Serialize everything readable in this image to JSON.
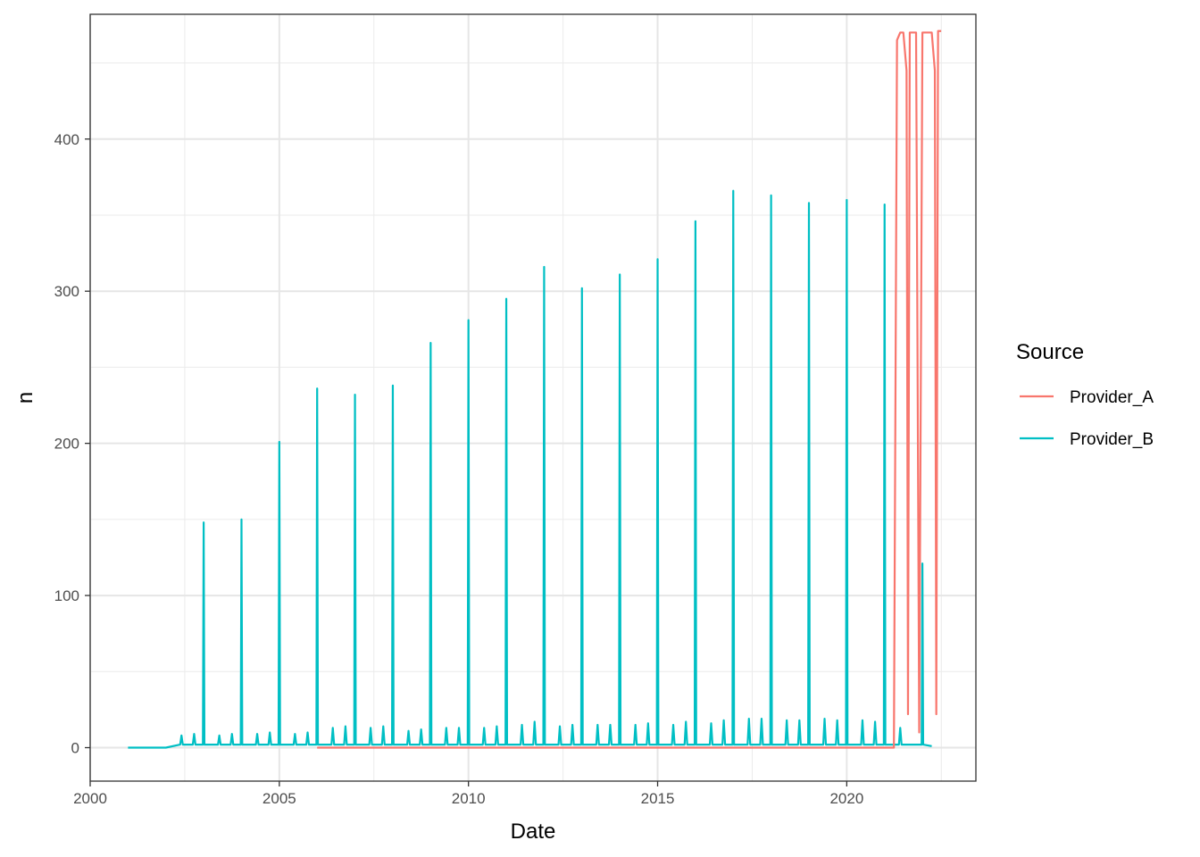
{
  "chart_data": {
    "type": "line",
    "title": "",
    "xlabel": "Date",
    "ylabel": "n",
    "xlim": [
      "2000-01-01",
      "2023-06-01"
    ],
    "ylim": [
      -22,
      482
    ],
    "xticks": [
      "2000",
      "2005",
      "2010",
      "2015",
      "2020"
    ],
    "yticks": [
      "0",
      "100",
      "200",
      "300",
      "400"
    ],
    "grid": true,
    "legend": {
      "title": "Source",
      "position": "right"
    },
    "series": [
      {
        "name": "Provider_A",
        "color": "#F8766D",
        "points": [
          [
            "2006-01-01",
            0
          ],
          [
            "2021-04-01",
            0
          ],
          [
            "2021-05-01",
            465
          ],
          [
            "2021-06-01",
            470
          ],
          [
            "2021-07-01",
            470
          ],
          [
            "2021-08-01",
            445
          ],
          [
            "2021-08-15",
            22
          ],
          [
            "2021-09-01",
            470
          ],
          [
            "2021-10-01",
            470
          ],
          [
            "2021-11-01",
            470
          ],
          [
            "2021-12-01",
            10
          ],
          [
            "2022-01-01",
            470
          ],
          [
            "2022-02-01",
            470
          ],
          [
            "2022-03-01",
            470
          ],
          [
            "2022-04-01",
            470
          ],
          [
            "2022-05-01",
            445
          ],
          [
            "2022-05-15",
            22
          ],
          [
            "2022-06-01",
            471
          ],
          [
            "2022-07-01",
            471
          ]
        ]
      },
      {
        "name": "Provider_B",
        "color": "#00BFC4",
        "baseline_start": "2001-01-01",
        "baseline_end": "2022-04-01",
        "annual_peaks": [
          [
            "2003-01-01",
            148
          ],
          [
            "2004-01-01",
            150
          ],
          [
            "2005-01-01",
            201
          ],
          [
            "2006-01-01",
            236
          ],
          [
            "2007-01-01",
            232
          ],
          [
            "2008-01-01",
            238
          ],
          [
            "2009-01-01",
            266
          ],
          [
            "2010-01-01",
            281
          ],
          [
            "2011-01-01",
            295
          ],
          [
            "2012-01-01",
            316
          ],
          [
            "2013-01-01",
            302
          ],
          [
            "2014-01-01",
            311
          ],
          [
            "2015-01-01",
            321
          ],
          [
            "2016-01-01",
            346
          ],
          [
            "2017-01-01",
            366
          ],
          [
            "2018-01-01",
            363
          ],
          [
            "2019-01-01",
            358
          ],
          [
            "2020-01-01",
            360
          ],
          [
            "2021-01-01",
            357
          ],
          [
            "2022-01-01",
            121
          ]
        ],
        "small_peaks": [
          [
            "2002-06-01",
            8
          ],
          [
            "2002-10-01",
            9
          ],
          [
            "2003-06-01",
            8
          ],
          [
            "2003-10-01",
            9
          ],
          [
            "2004-06-01",
            9
          ],
          [
            "2004-10-01",
            10
          ],
          [
            "2005-06-01",
            9
          ],
          [
            "2005-10-01",
            10
          ],
          [
            "2006-06-01",
            13
          ],
          [
            "2006-10-01",
            14
          ],
          [
            "2007-06-01",
            13
          ],
          [
            "2007-10-01",
            14
          ],
          [
            "2008-06-01",
            11
          ],
          [
            "2008-10-01",
            12
          ],
          [
            "2009-06-01",
            13
          ],
          [
            "2009-10-01",
            13
          ],
          [
            "2010-06-01",
            13
          ],
          [
            "2010-10-01",
            14
          ],
          [
            "2011-06-01",
            15
          ],
          [
            "2011-10-01",
            17
          ],
          [
            "2012-06-01",
            14
          ],
          [
            "2012-10-01",
            15
          ],
          [
            "2013-06-01",
            15
          ],
          [
            "2013-10-01",
            15
          ],
          [
            "2014-06-01",
            15
          ],
          [
            "2014-10-01",
            16
          ],
          [
            "2015-06-01",
            15
          ],
          [
            "2015-10-01",
            17
          ],
          [
            "2016-06-01",
            16
          ],
          [
            "2016-10-01",
            18
          ],
          [
            "2017-06-01",
            19
          ],
          [
            "2017-10-01",
            19
          ],
          [
            "2018-06-01",
            18
          ],
          [
            "2018-10-01",
            18
          ],
          [
            "2019-06-01",
            19
          ],
          [
            "2019-10-01",
            18
          ],
          [
            "2020-06-01",
            18
          ],
          [
            "2020-10-01",
            17
          ],
          [
            "2021-06-01",
            13
          ]
        ]
      }
    ]
  }
}
